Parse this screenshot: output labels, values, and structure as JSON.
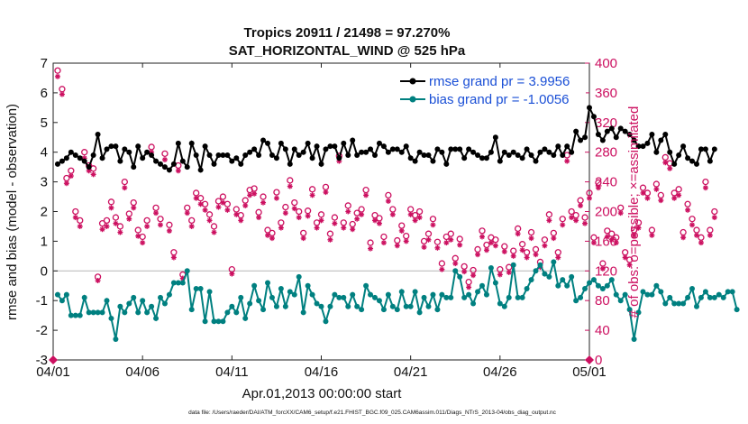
{
  "chart_data": {
    "type": "line",
    "title": "Tropics 20911 / 21498 = 97.270%",
    "subtitle": "SAT_HORIZONTAL_WIND @ 525 hPa",
    "xlabel": "Apr.01,2013 00:00:00 start",
    "ylabel_left": "rmse and bias (model - observation)",
    "ylabel_right": "# of obs: o=possible; ×=assimilated",
    "footnote": "data file: /Users/raeder/DAI/ATM_forcXX/CAM6_setup/f.e21.FHIST_BGC.f09_025.CAM6assim.011/Diags_NTrS_2013-04/obs_diag_output.nc",
    "x_tick_labels": [
      "04/01",
      "04/06",
      "04/11",
      "04/16",
      "04/21",
      "04/26",
      "05/01"
    ],
    "y_left_ticks": [
      "-3",
      "-2",
      "-1",
      "0",
      "1",
      "2",
      "3",
      "4",
      "5",
      "6",
      "7"
    ],
    "y_right_ticks": [
      "0",
      "40",
      "80",
      "120",
      "160",
      "200",
      "240",
      "280",
      "320",
      "360",
      "400"
    ],
    "xlim": [
      0,
      30
    ],
    "ylim_left": [
      -3,
      7
    ],
    "ylim_right": [
      0,
      400
    ],
    "x_step_days": 0.25,
    "legend": [
      "rmse grand pr = 3.9956",
      "bias grand pr = -1.0056"
    ],
    "colors": {
      "rmse": "#000000",
      "bias": "#008080",
      "obs": "#cc1060",
      "zero_line": "#bfbfbf",
      "legend_text": "#1a4fd6"
    },
    "series": [
      {
        "name": "rmse",
        "axis": "left",
        "values": [
          3.6,
          3.7,
          3.8,
          4.0,
          3.9,
          3.8,
          3.7,
          3.5,
          3.9,
          4.6,
          3.8,
          4.1,
          4.2,
          4.2,
          3.7,
          4.1,
          4.0,
          3.5,
          4.2,
          3.8,
          4.0,
          3.9,
          3.7,
          3.6,
          3.5,
          3.4,
          3.6,
          4.3,
          3.7,
          3.5,
          4.3,
          3.9,
          3.4,
          4.2,
          3.9,
          3.6,
          3.9,
          3.9,
          3.9,
          3.7,
          3.8,
          3.6,
          3.9,
          4.0,
          4.1,
          3.9,
          4.4,
          4.3,
          3.9,
          3.8,
          4.3,
          4.1,
          3.6,
          4.1,
          3.9,
          4.0,
          4.3,
          3.8,
          4.2,
          3.6,
          4.1,
          4.2,
          4.2,
          3.8,
          4.3,
          3.9,
          4.4,
          3.9,
          4.0,
          4.0,
          4.1,
          3.9,
          4.3,
          4.2,
          4.0,
          4.1,
          4.1,
          4.0,
          4.2,
          3.8,
          3.7,
          4.0,
          3.9,
          3.9,
          3.7,
          4.1,
          4.0,
          3.6,
          4.1,
          4.1,
          4.1,
          3.8,
          4.1,
          4.0,
          3.9,
          3.8,
          3.8,
          4.0,
          4.5,
          3.7,
          4.0,
          3.9,
          4.0,
          3.9,
          3.8,
          4.1,
          3.9,
          3.7,
          4.0,
          4.1,
          4.0,
          3.9,
          4.2,
          3.9,
          4.2,
          4.0,
          4.7,
          4.4,
          4.5,
          5.5,
          5.2,
          4.6,
          4.4,
          4.7,
          4.8,
          4.5,
          4.8,
          4.7,
          4.6,
          4.4,
          4.2,
          4.2,
          4.3,
          4.6,
          4.0,
          4.4,
          4.6,
          4.0,
          3.6,
          3.9,
          4.2,
          3.8,
          3.7,
          3.6,
          4.1,
          4.1,
          3.7,
          4.1
        ]
      },
      {
        "name": "bias",
        "axis": "left",
        "values": [
          -0.8,
          -1.0,
          -0.8,
          -1.5,
          -1.5,
          -1.5,
          -0.9,
          -1.4,
          -1.4,
          -1.4,
          -1.4,
          -1.0,
          -1.6,
          -2.3,
          -1.2,
          -1.4,
          -1.1,
          -0.9,
          -1.4,
          -1.0,
          -1.4,
          -1.2,
          -1.6,
          -0.9,
          -1.1,
          -0.8,
          -0.4,
          -0.4,
          -0.4,
          0.0,
          -1.3,
          -0.6,
          -0.6,
          -1.7,
          -0.7,
          -1.7,
          -1.7,
          -1.7,
          -1.4,
          -1.2,
          -1.4,
          -0.9,
          -1.6,
          -1.1,
          -0.5,
          -1.0,
          -1.3,
          -0.4,
          -0.9,
          -1.2,
          -0.6,
          -1.2,
          -0.7,
          -0.8,
          -0.2,
          -1.4,
          -0.5,
          -0.8,
          -1.1,
          -1.2,
          -1.7,
          -1.2,
          -0.8,
          -0.9,
          -0.9,
          -1.2,
          -0.8,
          -1.2,
          -1.3,
          -0.5,
          -0.8,
          -0.9,
          -1.0,
          -1.3,
          -0.8,
          -1.2,
          -1.3,
          -0.7,
          -1.2,
          -1.2,
          -0.7,
          -1.4,
          -0.9,
          -1.2,
          -0.8,
          -1.3,
          -0.8,
          -0.9,
          -0.9,
          0.0,
          -0.2,
          -0.9,
          -0.8,
          -1.1,
          -0.7,
          -0.5,
          -0.8,
          0.1,
          -0.4,
          -1.1,
          -1.2,
          -0.9,
          0.2,
          -0.9,
          -0.9,
          -0.6,
          -0.3,
          0.0,
          0.2,
          -0.1,
          -0.2,
          0.3,
          -0.5,
          -0.3,
          -0.5,
          -0.2,
          -1.0,
          -0.9,
          -0.6,
          -0.4,
          -0.3,
          -0.5,
          -0.6,
          -0.5,
          -0.3,
          -0.8,
          -1.0,
          -0.8,
          -1.3,
          -2.3,
          -1.4,
          -0.7,
          -0.8,
          -0.8,
          -0.5,
          -0.7,
          -1.1,
          -0.9,
          -1.1,
          -1.1,
          -1.1,
          -0.9,
          -0.6,
          -1.2,
          -0.9,
          -0.7,
          -0.9,
          -0.9,
          -0.8,
          -0.9,
          -0.7,
          -0.7,
          -1.3
        ]
      },
      {
        "name": "obs possible (o)",
        "axis": "right",
        "start_index": 1,
        "values": [
          390,
          365,
          245,
          255,
          200,
          188,
          280,
          262,
          258,
          112,
          184,
          188,
          213,
          192,
          180,
          240,
          197,
          212,
          175,
          166,
          188,
          287,
          205,
          190,
          278,
          182,
          145,
          262,
          115,
          205,
          188,
          225,
          218,
          210,
          196,
          180,
          214,
          220,
          210,
          122,
          203,
          195,
          215,
          229,
          231,
          199,
          220,
          175,
          171,
          226,
          185,
          206,
          242,
          212,
          200,
          171,
          201,
          230,
          185,
          196,
          233,
          170,
          192,
          275,
          185,
          208,
          183,
          198,
          203,
          229,
          158,
          195,
          191,
          166,
          222,
          203,
          161,
          181,
          167,
          203,
          195,
          200,
          160,
          170,
          190,
          159,
          130,
          166,
          170,
          137,
          163,
          126,
          105,
          121,
          149,
          174,
          155,
          165,
          162,
          122,
          153,
          125,
          147,
          177,
          156,
          145,
          172,
          149,
          132,
          162,
          196,
          171,
          145,
          190,
          276,
          200,
          195,
          215,
          192,
          225,
          165,
          239,
          130,
          174,
          170,
          165,
          205,
          145,
          135,
          175,
          185,
          232,
          225,
          175,
          237,
          222,
          273,
          265,
          225,
          230,
          172,
          210,
          190,
          175,
          165,
          240,
          175,
          200
        ]
      },
      {
        "name": "obs assimilated (×)",
        "axis": "right",
        "start_index": 1,
        "values": [
          382,
          358,
          238,
          248,
          192,
          180,
          272,
          255,
          250,
          107,
          176,
          180,
          205,
          184,
          172,
          232,
          190,
          205,
          167,
          158,
          180,
          280,
          198,
          182,
          270,
          174,
          138,
          255,
          110,
          198,
          180,
          218,
          210,
          202,
          188,
          172,
          206,
          212,
          202,
          116,
          196,
          188,
          208,
          222,
          224,
          192,
          212,
          168,
          164,
          218,
          178,
          198,
          234,
          204,
          192,
          164,
          194,
          222,
          178,
          188,
          226,
          162,
          184,
          268,
          178,
          200,
          176,
          190,
          196,
          222,
          150,
          188,
          184,
          158,
          214,
          196,
          154,
          174,
          160,
          196,
          188,
          192,
          152,
          162,
          182,
          151,
          122,
          158,
          162,
          130,
          155,
          119,
          98,
          114,
          142,
          166,
          148,
          158,
          154,
          115,
          146,
          118,
          140,
          170,
          148,
          138,
          164,
          142,
          125,
          154,
          188,
          164,
          138,
          182,
          268,
          192,
          188,
          208,
          184,
          218,
          158,
          232,
          123,
          166,
          162,
          158,
          198,
          138,
          128,
          168,
          178,
          225,
          218,
          168,
          230,
          215,
          266,
          258,
          218,
          222,
          165,
          202,
          182,
          168,
          158,
          232,
          168,
          192
        ]
      }
    ]
  }
}
